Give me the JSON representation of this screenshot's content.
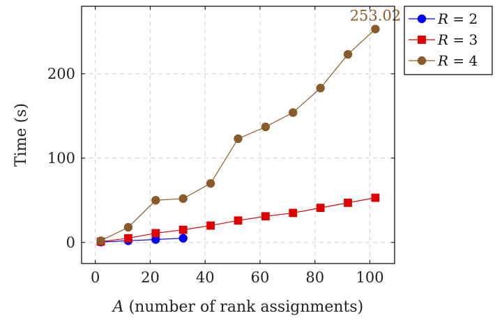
{
  "chart_data": {
    "type": "line",
    "title": "",
    "xlabel": "A (number of rank assignments)",
    "xlabel_var": "A",
    "xlabel_rest": " (number of rank assignments)",
    "ylabel": "Time (s)",
    "xlim": [
      -5,
      109
    ],
    "ylim": [
      -25,
      280
    ],
    "xticks": [
      0,
      20,
      40,
      60,
      80,
      100
    ],
    "yticks": [
      0,
      100,
      200
    ],
    "xgrid": [
      0,
      20,
      40,
      60,
      80,
      100
    ],
    "ygrid": [
      0,
      100,
      200
    ],
    "grid": true,
    "legend_position": "outside-top-right",
    "series": [
      {
        "name": "R = 2",
        "legend_var": "R",
        "legend_rest": " = 2",
        "color": "#0000ff",
        "marker": "circle",
        "x": [
          2,
          12,
          22,
          32
        ],
        "y": [
          0.5,
          2,
          3.5,
          5
        ]
      },
      {
        "name": "R = 3",
        "legend_var": "R",
        "legend_rest": " = 3",
        "color": "#e00000",
        "marker": "square",
        "x": [
          2,
          12,
          22,
          32,
          42,
          52,
          62,
          72,
          82,
          92,
          102
        ],
        "y": [
          1,
          5,
          11,
          15,
          20,
          26,
          31,
          35,
          41,
          47,
          53
        ]
      },
      {
        "name": "R = 4",
        "legend_var": "R",
        "legend_rest": " = 4",
        "color": "#8b5a2b",
        "marker": "circle",
        "x": [
          2,
          12,
          22,
          32,
          42,
          52,
          62,
          72,
          82,
          92,
          102
        ],
        "y": [
          2,
          18,
          50,
          52,
          70,
          123,
          137,
          154,
          183,
          223,
          253.02
        ]
      }
    ],
    "annotations": [
      {
        "text": "253.02",
        "x": 102,
        "y": 253.02,
        "color": "#8b5a2b"
      }
    ]
  }
}
